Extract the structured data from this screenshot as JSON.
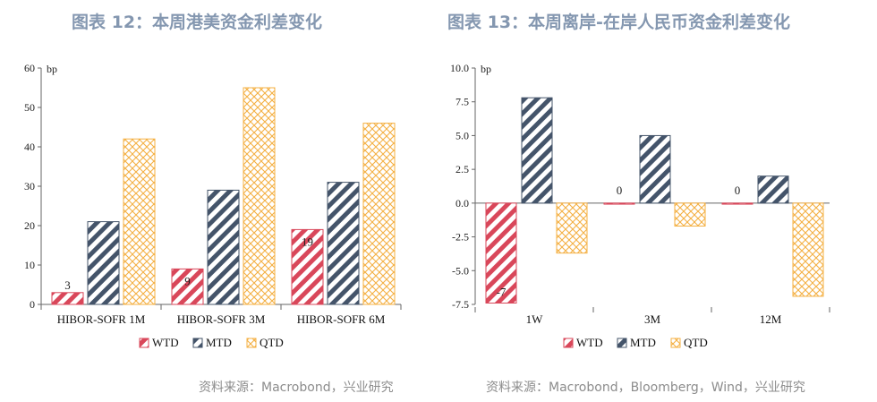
{
  "colors": {
    "title": "#8497b0",
    "wtd": "#d9475a",
    "mtd": "#44546a",
    "qtd": "#f4b043"
  },
  "legend": [
    "WTD",
    "MTD",
    "QTD"
  ],
  "chart_data": [
    {
      "type": "bar",
      "title": "图表 12：本周港美资金利差变化",
      "ylabel": "bp",
      "ylim": [
        0,
        60
      ],
      "yticks": [
        "0",
        "10",
        "20",
        "30",
        "40",
        "50",
        "60"
      ],
      "categories": [
        "HIBOR-SOFR 1M",
        "HIBOR-SOFR 3M",
        "HIBOR-SOFR 6M"
      ],
      "series": [
        {
          "name": "WTD",
          "values": [
            3,
            9,
            19
          ]
        },
        {
          "name": "MTD",
          "values": [
            21,
            29,
            31
          ]
        },
        {
          "name": "QTD",
          "values": [
            42,
            55,
            46
          ]
        }
      ],
      "data_labels": [
        "3",
        "9",
        "19"
      ],
      "source": "资料来源：Macrobond，兴业研究"
    },
    {
      "type": "bar",
      "title": "图表 13：本周离岸-在岸人民币资金利差变化",
      "ylabel": "bp",
      "ylim": [
        -7.5,
        10
      ],
      "yticks": [
        "10.0",
        "7.5",
        "5.0",
        "2.5",
        "0.0",
        "-2.5",
        "-5.0",
        "-7.5"
      ],
      "categories": [
        "1W",
        "3M",
        "12M"
      ],
      "series": [
        {
          "name": "WTD",
          "values": [
            -7.4,
            0,
            0
          ]
        },
        {
          "name": "MTD",
          "values": [
            7.8,
            5.0,
            2.0
          ]
        },
        {
          "name": "QTD",
          "values": [
            -3.7,
            -1.7,
            -6.9
          ]
        }
      ],
      "data_labels": [
        "-7",
        "0",
        "0"
      ],
      "source": "资料来源：Macrobond，Bloomberg，Wind，兴业研究"
    }
  ]
}
